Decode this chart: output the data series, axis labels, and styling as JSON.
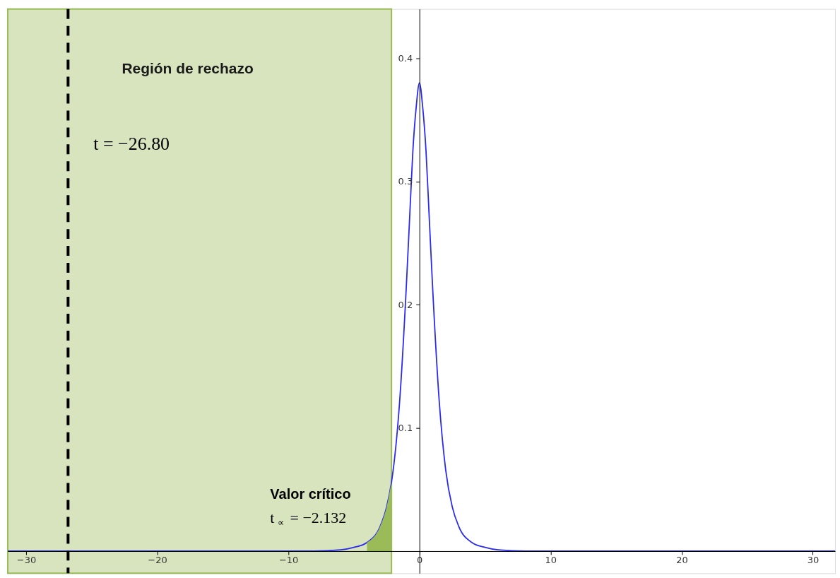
{
  "chart_data": {
    "type": "line",
    "xlim": [
      -31.4,
      31.7
    ],
    "ylim": [
      -0.018,
      0.44
    ],
    "xticks": [
      -30,
      -20,
      -10,
      0,
      10,
      20,
      30
    ],
    "yticks": [
      0.1,
      0.2,
      0.3,
      0.4
    ],
    "grid": false,
    "marker": "none",
    "line_style": "solid",
    "series": [
      {
        "color": "#2b2bf0",
        "x": [
          -31.4,
          -10,
          -8,
          -6,
          -5,
          -4,
          -3,
          -2.5,
          -2.132,
          -2,
          -1.5,
          -1,
          -0.75,
          -0.5,
          -0.25,
          0,
          0.25,
          0.5,
          0.75,
          1,
          1.5,
          2,
          2.5,
          3,
          4,
          5,
          6,
          8,
          10,
          31.7
        ],
        "values": [
          0,
          0,
          0,
          0.001,
          0.003,
          0.007,
          0.02,
          0.036,
          0.056,
          0.066,
          0.123,
          0.215,
          0.27,
          0.325,
          0.36,
          0.38,
          0.36,
          0.325,
          0.27,
          0.215,
          0.123,
          0.066,
          0.036,
          0.02,
          0.007,
          0.003,
          0.001,
          0,
          0,
          0
        ]
      },
      {
        "type": "area",
        "color": "#9bbb59",
        "x": [
          -4,
          -3,
          -2.5,
          -2.132
        ],
        "values": [
          0.007,
          0.02,
          0.036,
          0.056
        ]
      }
    ],
    "bands": [
      {
        "axis": "x",
        "from": -31.4,
        "to": -2.132,
        "label": "Región de rechazo",
        "color": "#d7e4bd"
      }
    ],
    "ref_lines": [
      {
        "axis": "x",
        "value": -26.8,
        "label": "t = −26.80",
        "color": "#000000",
        "line_style": "dashed"
      }
    ],
    "annotations": [
      "Valor crítico",
      "t$_{∝}$ = −2.132"
    ]
  }
}
